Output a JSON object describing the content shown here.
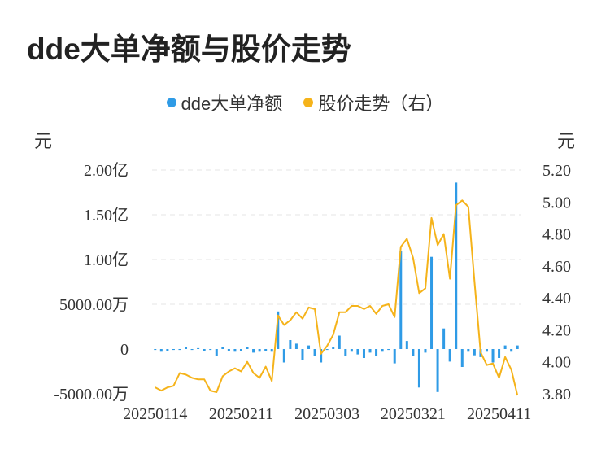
{
  "title": "dde大单净额与股价走势",
  "legend": [
    {
      "label": "dde大单净额",
      "color": "#2f9be6"
    },
    {
      "label": "股价走势（右）",
      "color": "#f5b31a"
    }
  ],
  "left_unit": "元",
  "right_unit": "元",
  "chart_data": {
    "type": "bar+line",
    "y_left": {
      "ticks": [
        "2.00亿",
        "1.50亿",
        "1.00亿",
        "5000.00万",
        "0",
        "-5000.00万"
      ],
      "values": [
        200000000,
        150000000,
        100000000,
        50000000,
        0,
        -50000000
      ],
      "min": -50000000,
      "max": 200000000
    },
    "y_right": {
      "ticks": [
        "5.20",
        "5.00",
        "4.80",
        "4.60",
        "4.40",
        "4.20",
        "4.00",
        "3.80"
      ],
      "min": 3.8,
      "max": 5.2
    },
    "x_tick_labels": [
      "20250114",
      "20250211",
      "20250303",
      "20250321",
      "20250411"
    ],
    "x_tick_indices": [
      0,
      14,
      28,
      42,
      56
    ],
    "bars": [
      -1000000,
      -3000000,
      -2000000,
      -1000000,
      -1000000,
      2000000,
      -1000000,
      1000000,
      -2000000,
      -1000000,
      -8000000,
      2000000,
      -2000000,
      -3000000,
      -2000000,
      2000000,
      -4000000,
      -3000000,
      -2000000,
      -3000000,
      42000000,
      -15000000,
      10000000,
      6000000,
      -12000000,
      4000000,
      -8000000,
      -15000000,
      -1000000,
      2000000,
      15000000,
      -8000000,
      -3000000,
      -6000000,
      -10000000,
      -4000000,
      -8000000,
      -3000000,
      -1000000,
      -16000000,
      110000000,
      9000000,
      -8000000,
      -43000000,
      -4000000,
      103000000,
      -48000000,
      23000000,
      -14000000,
      186000000,
      -20000000,
      -3000000,
      -7000000,
      -9000000,
      -3000000,
      -15000000,
      -10000000,
      4000000,
      -3000000,
      4000000
    ],
    "price": [
      3.84,
      3.82,
      3.84,
      3.85,
      3.93,
      3.92,
      3.9,
      3.89,
      3.89,
      3.82,
      3.81,
      3.91,
      3.94,
      3.96,
      3.94,
      4.0,
      3.93,
      3.9,
      3.97,
      3.88,
      4.29,
      4.23,
      4.26,
      4.31,
      4.27,
      4.34,
      4.33,
      4.05,
      4.1,
      4.17,
      4.31,
      4.31,
      4.35,
      4.35,
      4.33,
      4.35,
      4.3,
      4.35,
      4.36,
      4.28,
      4.72,
      4.77,
      4.65,
      4.43,
      4.46,
      4.9,
      4.73,
      4.8,
      4.52,
      4.98,
      5.01,
      4.97,
      4.5,
      4.06,
      3.98,
      3.99,
      3.9,
      4.03,
      3.95,
      3.79
    ]
  }
}
